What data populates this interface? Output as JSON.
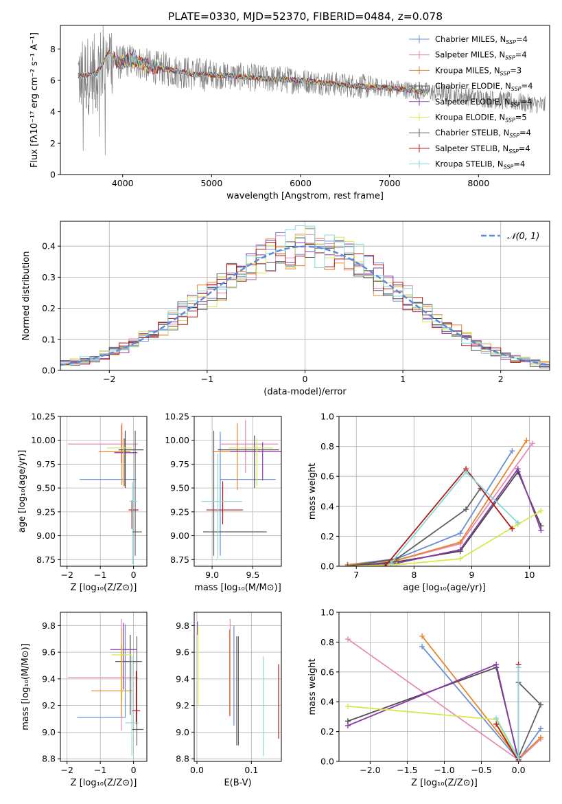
{
  "figure_title": "PLATE=0330, MJD=52370, FIBERID=0484, z=0.078",
  "model_colors": [
    "#6a8ed8",
    "#e68ab8",
    "#e8842a",
    "#4b4b4b",
    "#8a3aa8",
    "#d8e84a",
    "#606060",
    "#b01818",
    "#88d8d8"
  ],
  "chart_data": [
    {
      "id": "spectrum",
      "type": "line",
      "title": "PLATE=0330, MJD=52370, FIBERID=0484, z=0.078",
      "xlabel": "wavelength [Angstrom, rest frame]",
      "ylabel": "Flux [fλ10⁻¹⁷ erg cm⁻² s⁻¹ A⁻¹]",
      "xlim": [
        3300,
        8800
      ],
      "ylim": [
        0,
        9.5
      ],
      "xticks": [
        "4000",
        "5000",
        "6000",
        "7000",
        "8000"
      ],
      "yticks": [
        "0",
        "2",
        "4",
        "6",
        "8"
      ],
      "legend_position": "top-right",
      "legend": [
        {
          "name": "Chabrier MILES, N",
          "sub": "SSP",
          "tail": "=4",
          "color": "#6a8ed8"
        },
        {
          "name": "Salpeter MILES, N",
          "sub": "SSP",
          "tail": "=4",
          "color": "#e68ab8"
        },
        {
          "name": "Kroupa MILES, N",
          "sub": "SSP",
          "tail": "=3",
          "color": "#e8842a"
        },
        {
          "name": "Chabrier ELODIE, N",
          "sub": "SSP",
          "tail": "=4",
          "color": "#4b4b4b"
        },
        {
          "name": "Salpeter ELODIE, N",
          "sub": "SSP",
          "tail": "=4",
          "color": "#8a3aa8"
        },
        {
          "name": "Kroupa ELODIE, N",
          "sub": "SSP",
          "tail": "=5",
          "color": "#d8e84a"
        },
        {
          "name": "Chabrier STELIB, N",
          "sub": "SSP",
          "tail": "=4",
          "color": "#606060"
        },
        {
          "name": "Salpeter STELIB, N",
          "sub": "SSP",
          "tail": "=4",
          "color": "#b01818"
        },
        {
          "name": "Kroupa STELIB, N",
          "sub": "SSP",
          "tail": "=4",
          "color": "#88d8d8"
        }
      ],
      "data_series": {
        "name": "data",
        "color": "#808080",
        "x_range": [
          3500,
          8750
        ]
      },
      "model_anchor_points": [
        [
          3550,
          6.3
        ],
        [
          3700,
          6.4
        ],
        [
          3850,
          7.8
        ],
        [
          3950,
          7.1
        ],
        [
          4100,
          7.3
        ],
        [
          4300,
          6.9
        ],
        [
          4500,
          6.7
        ],
        [
          4800,
          6.4
        ],
        [
          5200,
          6.3
        ],
        [
          5600,
          6.1
        ],
        [
          6000,
          6.0
        ],
        [
          6500,
          5.7
        ],
        [
          7000,
          5.5
        ],
        [
          7400,
          5.3
        ]
      ]
    },
    {
      "id": "residuals",
      "type": "line",
      "xlabel": "(data-model)/error",
      "ylabel": "Normed distribution",
      "xlim": [
        -2.5,
        2.5
      ],
      "ylim": [
        0,
        0.48
      ],
      "xticks": [
        "-2",
        "-1",
        "0",
        "1",
        "2"
      ],
      "yticks": [
        "0.0",
        "0.1",
        "0.2",
        "0.3",
        "0.4"
      ],
      "legend_position": "top-right",
      "legend": [
        {
          "name": "𝒩(0, 1)",
          "color": "#5b8ad6",
          "dash": true
        }
      ],
      "reference_curve": {
        "type": "normal",
        "mean": 0,
        "sigma": 1
      }
    },
    {
      "id": "age_vs_Z",
      "type": "scatter",
      "xlabel": "Z [log₁₀(Z/Z⊙)]",
      "ylabel": "age  [log₁₀(age/yr)]",
      "xlim": [
        -2.2,
        0.4
      ],
      "ylim": [
        8.68,
        10.25
      ],
      "xticks": [
        "-2",
        "-1",
        "0"
      ],
      "yticks": [
        "8.75",
        "9.00",
        "9.25",
        "9.50",
        "9.75",
        "10.00",
        "10.25"
      ],
      "points": [
        {
          "x": 0.08,
          "y": 9.59,
          "xerr": [
            1.7,
            0.0
          ],
          "yerr": [
            0.0,
            0.0
          ],
          "color": "#6a8ed8"
        },
        {
          "x": -0.37,
          "y": 9.96,
          "xerr": [
            1.6,
            0.5
          ],
          "yerr": [
            0.2,
            0.2
          ],
          "color": "#e68ab8"
        },
        {
          "x": -0.35,
          "y": 9.88,
          "xerr": [
            0.7,
            0.25
          ],
          "yerr": [
            0.35,
            0.3
          ],
          "color": "#e8842a"
        },
        {
          "x": -0.25,
          "y": 9.9,
          "xerr": [
            0.2,
            0.55
          ],
          "yerr": [
            0.4,
            0.2
          ],
          "color": "#4b4b4b"
        },
        {
          "x": -0.28,
          "y": 9.87,
          "xerr": [
            0.3,
            0.4
          ],
          "yerr": [
            0.35,
            0.15
          ],
          "color": "#8a3aa8"
        },
        {
          "x": -0.3,
          "y": 9.92,
          "xerr": [
            0.5,
            0.25
          ],
          "yerr": [
            0.4,
            0.1
          ],
          "color": "#d8e84a"
        },
        {
          "x": 0.05,
          "y": 9.04,
          "xerr": [
            0.1,
            0.2
          ],
          "yerr": [
            0.25,
            1.06
          ],
          "color": "#606060"
        },
        {
          "x": -0.05,
          "y": 9.27,
          "xerr": [
            0.1,
            0.2
          ],
          "yerr": [
            0.2,
            0.1
          ],
          "color": "#b01818"
        },
        {
          "x": -0.03,
          "y": 9.36,
          "xerr": [
            0.1,
            0.15
          ],
          "yerr": [
            0.66,
            0.2
          ],
          "color": "#88d8d8"
        }
      ]
    },
    {
      "id": "age_vs_mass",
      "type": "scatter",
      "xlabel": "mass [log₁₀(M/M⊙)]",
      "ylabel": "",
      "xlim": [
        8.78,
        9.85
      ],
      "ylim": [
        8.68,
        10.25
      ],
      "xticks": [
        "9.0",
        "9.5"
      ],
      "yticks": [
        "8.75",
        "9.00",
        "9.25",
        "9.50",
        "9.75",
        "10.00",
        "10.25"
      ],
      "points": [
        {
          "x": 9.1,
          "y": 9.59,
          "xerr": [
            0.0,
            0.68
          ],
          "yerr": [
            0.8,
            0.5
          ],
          "color": "#6a8ed8"
        },
        {
          "x": 9.41,
          "y": 9.96,
          "xerr": [
            0.3,
            0.4
          ],
          "yerr": [
            0.3,
            0.25
          ],
          "color": "#e68ab8"
        },
        {
          "x": 9.31,
          "y": 9.88,
          "xerr": [
            0.3,
            0.3
          ],
          "yerr": [
            0.4,
            0.3
          ],
          "color": "#e8842a"
        },
        {
          "x": 9.52,
          "y": 9.9,
          "xerr": [
            0.45,
            0.3
          ],
          "yerr": [
            0.4,
            0.15
          ],
          "color": "#4b4b4b"
        },
        {
          "x": 9.62,
          "y": 9.88,
          "xerr": [
            0.4,
            0.25
          ],
          "yerr": [
            0.3,
            0.1
          ],
          "color": "#8a3aa8"
        },
        {
          "x": 9.55,
          "y": 9.92,
          "xerr": [
            0.35,
            0.2
          ],
          "yerr": [
            0.4,
            0.1
          ],
          "color": "#d8e84a"
        },
        {
          "x": 9.02,
          "y": 9.04,
          "xerr": [
            0.13,
            0.65
          ],
          "yerr": [
            0.25,
            1.06
          ],
          "color": "#606060"
        },
        {
          "x": 9.13,
          "y": 9.27,
          "xerr": [
            0.2,
            0.25
          ],
          "yerr": [
            0.15,
            0.3
          ],
          "color": "#b01818"
        },
        {
          "x": 9.07,
          "y": 9.36,
          "xerr": [
            0.2,
            0.3
          ],
          "yerr": [
            0.6,
            0.5
          ],
          "color": "#88d8d8"
        }
      ]
    },
    {
      "id": "mass_weight_vs_age",
      "type": "line",
      "xlabel": "age  [log₁₀(age/yr)]",
      "ylabel": "mass weight",
      "xlim": [
        6.7,
        10.35
      ],
      "ylim": [
        0,
        1.0
      ],
      "xticks": [
        "7",
        "8",
        "9",
        "10"
      ],
      "yticks": [
        "0.0",
        "0.2",
        "0.4",
        "0.6",
        "0.8",
        "1.0"
      ],
      "series": [
        {
          "color": "#6a8ed8",
          "x": [
            6.85,
            7.7,
            8.8,
            9.7
          ],
          "y": [
            0.01,
            0.05,
            0.22,
            0.77
          ]
        },
        {
          "color": "#e68ab8",
          "x": [
            6.85,
            7.7,
            8.8,
            10.05
          ],
          "y": [
            0.01,
            0.04,
            0.15,
            0.82
          ]
        },
        {
          "color": "#e8842a",
          "x": [
            6.85,
            7.7,
            8.8,
            9.95
          ],
          "y": [
            0.01,
            0.04,
            0.16,
            0.84
          ]
        },
        {
          "color": "#4b4b4b",
          "x": [
            6.85,
            7.7,
            8.8,
            9.8,
            10.2
          ],
          "y": [
            0.0,
            0.03,
            0.1,
            0.63,
            0.27
          ]
        },
        {
          "color": "#8a3aa8",
          "x": [
            6.85,
            7.7,
            8.8,
            9.8,
            10.2
          ],
          "y": [
            0.0,
            0.02,
            0.11,
            0.65,
            0.24
          ]
        },
        {
          "color": "#d8e84a",
          "x": [
            6.85,
            7.7,
            8.8,
            9.8,
            10.2
          ],
          "y": [
            0.0,
            0.01,
            0.05,
            0.28,
            0.37
          ]
        },
        {
          "color": "#606060",
          "x": [
            6.85,
            7.7,
            8.9,
            9.15
          ],
          "y": [
            0.0,
            0.05,
            0.38,
            0.52
          ]
        },
        {
          "color": "#b01818",
          "x": [
            7.5,
            8.9,
            9.7
          ],
          "y": [
            0.0,
            0.65,
            0.25
          ]
        },
        {
          "color": "#88d8d8",
          "x": [
            7.6,
            8.9,
            9.8
          ],
          "y": [
            0.02,
            0.63,
            0.29
          ]
        }
      ]
    },
    {
      "id": "mass_vs_Z",
      "type": "scatter",
      "xlabel": "Z [log₁₀(Z/Z⊙)]",
      "ylabel": "mass [log₁₀(M/M⊙)]",
      "xlim": [
        -2.2,
        0.4
      ],
      "ylim": [
        8.78,
        9.9
      ],
      "xticks": [
        "-2",
        "-1",
        "0"
      ],
      "yticks": [
        "8.8",
        "9.0",
        "9.2",
        "9.4",
        "9.6",
        "9.8"
      ],
      "points": [
        {
          "x": -0.25,
          "y": 9.11,
          "xerr": [
            1.45,
            0.0
          ],
          "yerr": [
            0.0,
            0.7
          ],
          "color": "#6a8ed8"
        },
        {
          "x": -0.37,
          "y": 9.41,
          "xerr": [
            1.6,
            0.5
          ],
          "yerr": [
            0.4,
            0.44
          ],
          "color": "#e68ab8"
        },
        {
          "x": -0.37,
          "y": 9.31,
          "xerr": [
            0.9,
            0.35
          ],
          "yerr": [
            0.2,
            0.35
          ],
          "color": "#e8842a"
        },
        {
          "x": -0.1,
          "y": 9.53,
          "xerr": [
            0.45,
            0.35
          ],
          "yerr": [
            0.4,
            0.2
          ],
          "color": "#4b4b4b"
        },
        {
          "x": -0.3,
          "y": 9.62,
          "xerr": [
            0.4,
            0.4
          ],
          "yerr": [
            0.3,
            0.2
          ],
          "color": "#8a3aa8"
        },
        {
          "x": -0.35,
          "y": 9.58,
          "xerr": [
            0.3,
            0.3
          ],
          "yerr": [
            0.35,
            0.2
          ],
          "color": "#d8e84a"
        },
        {
          "x": 0.1,
          "y": 9.02,
          "xerr": [
            0.15,
            0.2
          ],
          "yerr": [
            0.12,
            0.7
          ],
          "color": "#606060"
        },
        {
          "x": 0.08,
          "y": 9.16,
          "xerr": [
            0.12,
            0.12
          ],
          "yerr": [
            0.1,
            0.3
          ],
          "color": "#b01818"
        },
        {
          "x": -0.05,
          "y": 9.07,
          "xerr": [
            0.2,
            0.2
          ],
          "yerr": [
            0.25,
            0.5
          ],
          "color": "#88d8d8"
        }
      ]
    },
    {
      "id": "mass_vs_ebv",
      "type": "scatter",
      "xlabel": "E(B-V)",
      "ylabel": "",
      "xlim": [
        -0.005,
        0.155
      ],
      "ylim": [
        8.78,
        9.9
      ],
      "xticks": [
        "0.0",
        "0.1"
      ],
      "yticks": [
        "8.8",
        "9.0",
        "9.2",
        "9.4",
        "9.6",
        "9.8"
      ],
      "points": [
        {
          "x": 0.068,
          "y": 9.4,
          "yerr": [
            0.35,
            0.4
          ],
          "color": "#6a8ed8"
        },
        {
          "x": 0.061,
          "y": 9.5,
          "yerr": [
            0.38,
            0.35
          ],
          "color": "#e68ab8"
        },
        {
          "x": 0.06,
          "y": 9.42,
          "yerr": [
            0.3,
            0.35
          ],
          "color": "#e8842a"
        },
        {
          "x": 0.076,
          "y": 9.3,
          "yerr": [
            0.4,
            0.42
          ],
          "color": "#4b4b4b"
        },
        {
          "x": 0.001,
          "y": 9.78,
          "yerr": [
            0.05,
            0.05
          ],
          "color": "#8a3aa8"
        },
        {
          "x": 0.002,
          "y": 9.5,
          "yerr": [
            0.3,
            0.3
          ],
          "color": "#d8e84a"
        },
        {
          "x": 0.073,
          "y": 9.2,
          "yerr": [
            0.3,
            0.52
          ],
          "color": "#606060"
        },
        {
          "x": 0.15,
          "y": 9.23,
          "yerr": [
            0.28,
            0.28
          ],
          "color": "#b01818"
        },
        {
          "x": 0.122,
          "y": 9.2,
          "yerr": [
            0.38,
            0.37
          ],
          "color": "#88d8d8"
        }
      ]
    },
    {
      "id": "mass_weight_vs_Z",
      "type": "line",
      "xlabel": "Z [log₁₀(Z/Z⊙)]",
      "ylabel": "mass weight",
      "xlim": [
        -2.42,
        0.42
      ],
      "ylim": [
        0,
        1.0
      ],
      "xticks": [
        "-2.0",
        "-1.5",
        "-1.0",
        "-0.5",
        "0.0"
      ],
      "yticks": [
        "0.0",
        "0.2",
        "0.4",
        "0.6",
        "0.8",
        "1.0"
      ],
      "series": [
        {
          "color": "#6a8ed8",
          "x": [
            -1.3,
            0.0,
            0.3
          ],
          "y": [
            0.77,
            0.01,
            0.22
          ]
        },
        {
          "color": "#e68ab8",
          "x": [
            -2.3,
            0.0,
            0.3
          ],
          "y": [
            0.82,
            0.01,
            0.15
          ]
        },
        {
          "color": "#e8842a",
          "x": [
            -1.3,
            0.0,
            0.3
          ],
          "y": [
            0.84,
            0.02,
            0.16
          ]
        },
        {
          "color": "#4b4b4b",
          "x": [
            -2.3,
            -0.3,
            0.0
          ],
          "y": [
            0.27,
            0.63,
            0.01
          ]
        },
        {
          "color": "#8a3aa8",
          "x": [
            -2.3,
            -0.3,
            0.0
          ],
          "y": [
            0.24,
            0.65,
            0.0
          ]
        },
        {
          "color": "#d8e84a",
          "x": [
            -2.3,
            -0.3,
            0.0
          ],
          "y": [
            0.37,
            0.28,
            0.0
          ]
        },
        {
          "color": "#606060",
          "x": [
            0.0,
            0.3,
            0.0
          ],
          "y": [
            0.53,
            0.38,
            0.03
          ]
        },
        {
          "color": "#b01818",
          "x": [
            0.0,
            0.0,
            -0.3
          ],
          "y": [
            0.65,
            0.0,
            0.25
          ]
        },
        {
          "color": "#88d8d8",
          "x": [
            0.0,
            0.0,
            -0.3
          ],
          "y": [
            0.63,
            0.02,
            0.29
          ]
        }
      ]
    }
  ]
}
